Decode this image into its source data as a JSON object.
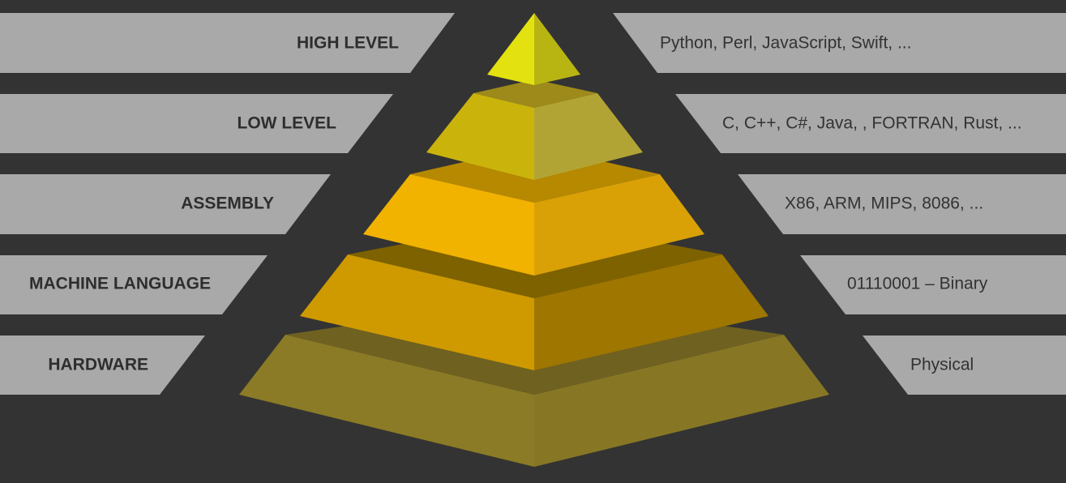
{
  "diagram": {
    "levels": [
      {
        "label": "HIGH LEVEL",
        "examples": "Python, Perl, JavaScript, Swift, ..."
      },
      {
        "label": "LOW LEVEL",
        "examples": "C, C++, C#, Java, , FORTRAN, Rust, ..."
      },
      {
        "label": "ASSEMBLY",
        "examples": "X86, ARM, MIPS, 8086, ..."
      },
      {
        "label": "MACHINE LANGUAGE",
        "examples": "01110001 – Binary"
      },
      {
        "label": "HARDWARE",
        "examples": "Physical"
      }
    ]
  },
  "colors": {
    "background": "#333333",
    "band": "#a9a9a9",
    "tier_high": "#d4d400",
    "tier_low": "#c9b40f",
    "tier_assembly": "#f0b000",
    "tier_machine": "#cc9900",
    "tier_hardware": "#8a7a25"
  }
}
